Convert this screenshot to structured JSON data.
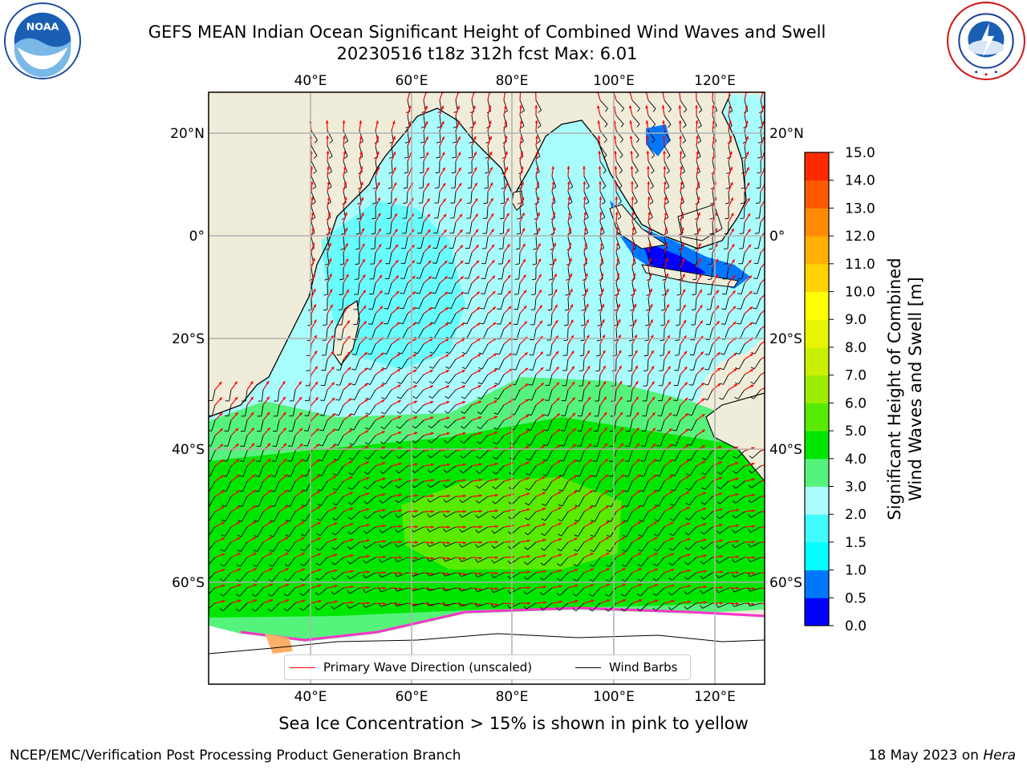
{
  "title": {
    "line1": "GEFS MEAN Indian Ocean Significant Height of Combined Wind Waves and Swell",
    "line2": "20230516 t18z 312h fcst   Max: 6.01"
  },
  "logos": {
    "left": {
      "icon": "noaa-logo",
      "text": "NOAA"
    },
    "right": {
      "icon": "nws-logo",
      "text": "NATIONAL WEATHER SERVICE"
    }
  },
  "map": {
    "top_lon_labels": [
      "40°E",
      "60°E",
      "80°E",
      "100°E",
      "120°E"
    ],
    "bottom_lon_labels": [
      "40°E",
      "60°E",
      "80°E",
      "100°E",
      "120°E"
    ],
    "left_lat_labels": [
      "20°N",
      "0°",
      "20°S",
      "40°S",
      "60°S"
    ],
    "right_lat_labels": [
      "20°N",
      "0°",
      "20°S",
      "40°S",
      "60°S"
    ],
    "colors": {
      "land": "#efedda",
      "ice": "#ffffff",
      "grid": "#b0b0b0",
      "wave_arrow": "#ff0000",
      "wind_barb": "#000000"
    }
  },
  "legend": {
    "primary_wave": "Primary Wave Direction (unscaled)",
    "wind_barbs": "Wind Barbs"
  },
  "colorbar": {
    "label_line1": "Significant Height of Combined",
    "label_line2": "Wind Waves and Swell [m]",
    "ticks": [
      "0.0",
      "0.5",
      "1.0",
      "1.5",
      "2.0",
      "3.0",
      "4.0",
      "5.0",
      "6.0",
      "7.0",
      "8.0",
      "9.0",
      "10.0",
      "11.0",
      "12.0",
      "13.0",
      "14.0",
      "15.0"
    ],
    "colors": [
      "#0000ff",
      "#0077ff",
      "#00ffff",
      "#40fbfb",
      "#a8fcfc",
      "#55f37b",
      "#00e600",
      "#58ea00",
      "#9ded00",
      "#c8f000",
      "#e8f500",
      "#ffff00",
      "#ffd200",
      "#ffb000",
      "#ff8a00",
      "#ff5a00",
      "#ff2a00"
    ]
  },
  "caption": "Sea Ice Concentration > 15% is shown in pink to yellow",
  "footer": {
    "left": "NCEP/EMC/Verification Post Processing Product Generation Branch",
    "date": "18 May 2023 on",
    "machine": "Hera"
  }
}
